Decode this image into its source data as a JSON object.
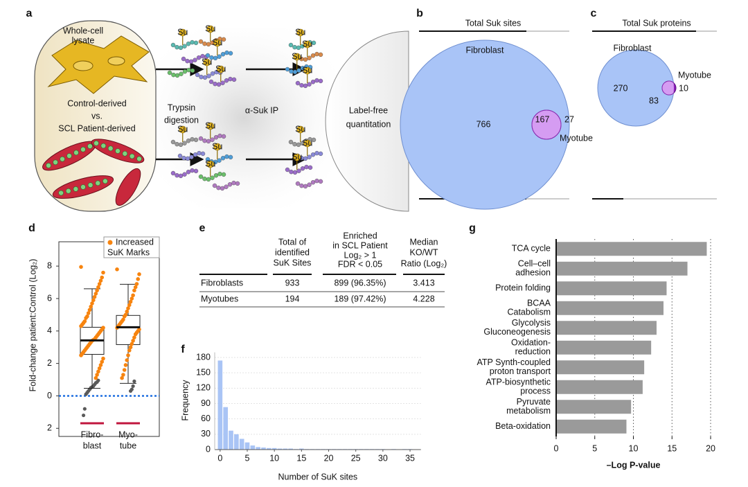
{
  "panel_a": {
    "label": "a",
    "whole_cell": [
      "Whole-cell",
      "lysate"
    ],
    "control": "Control-derived",
    "vs": "vs.",
    "patient": "SCL Patient-derived",
    "trypsin": [
      "Trypsin",
      "digestion"
    ],
    "ip": "α-Suk IP",
    "quant": [
      "Label-free",
      "quantitation"
    ],
    "su": "Su"
  },
  "panel_b": {
    "label": "b",
    "title": "Total Suk sites",
    "fibroblast_label": "Fibroblast",
    "myotube_label": "Myotube",
    "fibroblast_only": 766,
    "overlap": 167,
    "myotube_only": 27
  },
  "panel_c": {
    "label": "c",
    "title": "Total Suk proteins",
    "fibroblast_label": "Fibroblast",
    "myotube_label": "Myotube",
    "fibroblast_only": 270,
    "overlap": 83,
    "myotube_only": 10
  },
  "panel_e": {
    "label": "e",
    "headers": [
      [
        "Total of",
        "identified",
        "SuK Sites"
      ],
      [
        "Enriched",
        "in SCL Patient",
        "Log₂ > 1",
        "FDR < 0.05"
      ],
      [
        "Median",
        "KO/WT",
        "Ratio (Log₂)"
      ]
    ],
    "rows": [
      [
        "Fibroblasts",
        "933",
        "899 (96.35%)",
        "3.413"
      ],
      [
        "Myotubes",
        "194",
        "189 (97.42%)",
        "4.228"
      ]
    ]
  },
  "chart_data": [
    {
      "type": "box",
      "panel_label": "d",
      "ylabel": "Fold-change patient:Control (Log₂)",
      "legend_label": [
        "Increased",
        "SuK Marks"
      ],
      "ylim": [
        -2.5,
        9.5
      ],
      "yticks": [
        8,
        6,
        4,
        2,
        0,
        {
          "value": -2,
          "label": "2"
        }
      ],
      "categories": [
        [
          "Fibro-",
          "blast"
        ],
        [
          "Myo-",
          "tube"
        ]
      ],
      "color": "#f7840f",
      "other_color": "#5a5a5a",
      "category_color": "#c0163e",
      "zero_line_color": "#1f6fe0",
      "series": [
        {
          "whislo": 0.47,
          "q1": 2.56,
          "med": 3.42,
          "q3": 4.23,
          "whishi": 6.6,
          "points": [
            7.95,
            7.6,
            7.3,
            7.1,
            6.9,
            6.7,
            6.5,
            6.3,
            6.1,
            5.9,
            5.7,
            5.5,
            5.3,
            5.1,
            4.9,
            4.8,
            4.6,
            4.5,
            4.4,
            4.3,
            4.2,
            4.1,
            4.0,
            3.9,
            3.8,
            3.7,
            3.6,
            3.5,
            3.45,
            3.4,
            3.3,
            3.2,
            3.1,
            3.0,
            2.9,
            2.8,
            2.7,
            2.6,
            2.5,
            2.3,
            2.1,
            1.9,
            1.7,
            1.5,
            1.3,
            1.1
          ],
          "other_points": [
            0.95,
            0.85,
            0.8,
            0.7,
            0.6,
            0.55,
            0.5,
            0.4,
            0.3,
            0.2,
            0.1,
            -0.8,
            -1.2
          ]
        },
        {
          "whislo": 0.77,
          "q1": 3.16,
          "med": 4.23,
          "q3": 4.96,
          "whishi": 6.88,
          "points": [
            7.8,
            7.5,
            7.2,
            6.9,
            6.7,
            6.5,
            6.2,
            6.0,
            5.8,
            5.6,
            5.4,
            5.2,
            5.0,
            4.9,
            4.7,
            4.6,
            4.5,
            4.4,
            4.3,
            4.2,
            4.1,
            4.0,
            3.9,
            3.8,
            3.6,
            3.4,
            3.2,
            3.0,
            2.8,
            2.5,
            2.2,
            1.9,
            1.6,
            1.3,
            1.1
          ],
          "other_points": [
            0.9,
            0.6,
            0.4,
            0.3
          ]
        }
      ]
    },
    {
      "type": "histogram",
      "panel_label": "f",
      "xlabel": "Number of SuK sites",
      "ylabel": "Frequency",
      "color": "#a9c4f5",
      "grid": true,
      "bins": [
        -0.5,
        0.5,
        1.5,
        2.5,
        3.5,
        4.5,
        5.5,
        6.5,
        7.5,
        8.5,
        9.5,
        10.5,
        11.5,
        12.5,
        13.5,
        14.5,
        15.5,
        16.5,
        17.5,
        18.5,
        19.5,
        20.5,
        21.5,
        22.5,
        23.5,
        24.5,
        25.5,
        26.5,
        27.5,
        28.5,
        29.5,
        30.5,
        31.5,
        32.5,
        33.5,
        34.5,
        35.5
      ],
      "counts": [
        174,
        83,
        37,
        30,
        21,
        14,
        8,
        5,
        4,
        3,
        3,
        2,
        2,
        2,
        1,
        2,
        1,
        1,
        1,
        1,
        1,
        1,
        1,
        1,
        1,
        1,
        1,
        1,
        1,
        1,
        1,
        0,
        1,
        0,
        1,
        1
      ],
      "xlim": [
        -1,
        37
      ],
      "ylim": [
        0,
        190
      ],
      "xticks": [
        0,
        5,
        10,
        15,
        20,
        25,
        30,
        35
      ],
      "yticks": [
        0,
        30,
        60,
        90,
        120,
        150,
        180
      ]
    },
    {
      "type": "bar",
      "orientation": "horizontal",
      "panel_label": "g",
      "xlabel": "–Log P-value",
      "color": "#9a9a9a",
      "grid": true,
      "categories": [
        [
          "TCA cycle"
        ],
        [
          "Cell–cell",
          "adhesion"
        ],
        [
          "Protein folding"
        ],
        [
          "BCAA",
          "Catabolism"
        ],
        [
          "Glycolysis",
          "Gluconeogenesis"
        ],
        [
          "Oxidation-",
          "reduction"
        ],
        [
          "ATP Synth-coupled",
          "proton transport"
        ],
        [
          "ATP-biosynthetic",
          "process"
        ],
        [
          "Pyruvate",
          "metabolism"
        ],
        [
          "Beta-oxidation"
        ]
      ],
      "values": [
        19.5,
        17,
        14.3,
        13.9,
        13,
        12.3,
        11.4,
        11.2,
        9.7,
        9.1
      ],
      "xlim": [
        0,
        20.5
      ],
      "xticks": [
        0,
        5,
        10,
        15,
        20
      ]
    }
  ]
}
